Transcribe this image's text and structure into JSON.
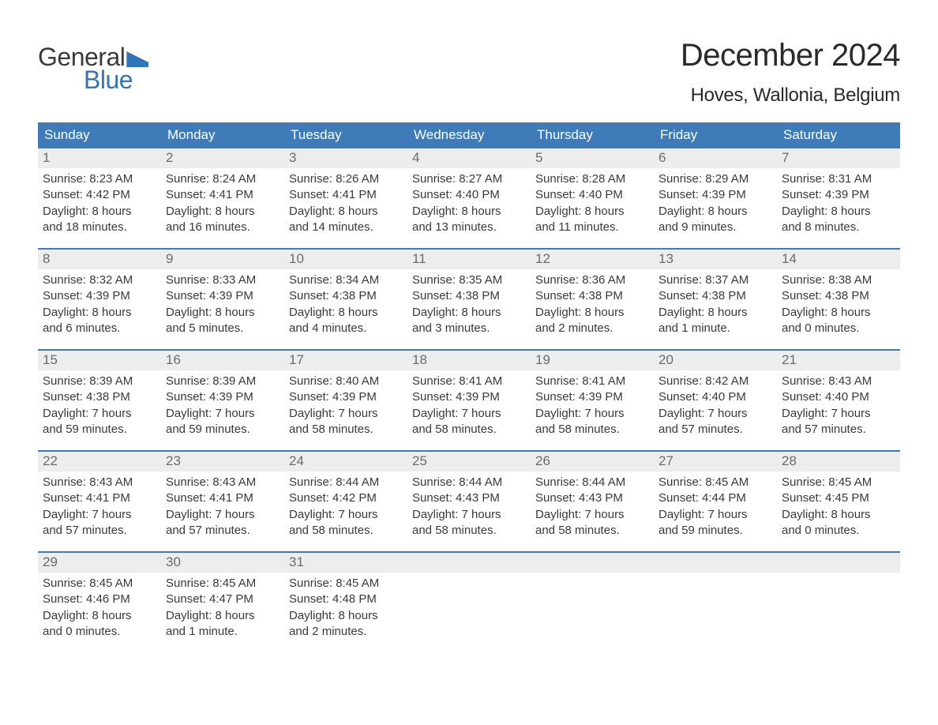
{
  "colors": {
    "header_bg": "#3d7cb8",
    "header_text": "#ffffff",
    "daynum_bg": "#ededed",
    "daynum_text": "#6b6b6b",
    "body_text": "#3a3a3a",
    "week_border": "#3d7cb8",
    "logo_blue": "#2f76b8",
    "page_bg": "#ffffff"
  },
  "logo": {
    "word1": "General",
    "word2": "Blue"
  },
  "title": "December 2024",
  "location": "Hoves, Wallonia, Belgium",
  "weekdays": [
    "Sunday",
    "Monday",
    "Tuesday",
    "Wednesday",
    "Thursday",
    "Friday",
    "Saturday"
  ],
  "weeks": [
    [
      {
        "n": "1",
        "sr": "Sunrise: 8:23 AM",
        "ss": "Sunset: 4:42 PM",
        "dl1": "Daylight: 8 hours",
        "dl2": "and 18 minutes."
      },
      {
        "n": "2",
        "sr": "Sunrise: 8:24 AM",
        "ss": "Sunset: 4:41 PM",
        "dl1": "Daylight: 8 hours",
        "dl2": "and 16 minutes."
      },
      {
        "n": "3",
        "sr": "Sunrise: 8:26 AM",
        "ss": "Sunset: 4:41 PM",
        "dl1": "Daylight: 8 hours",
        "dl2": "and 14 minutes."
      },
      {
        "n": "4",
        "sr": "Sunrise: 8:27 AM",
        "ss": "Sunset: 4:40 PM",
        "dl1": "Daylight: 8 hours",
        "dl2": "and 13 minutes."
      },
      {
        "n": "5",
        "sr": "Sunrise: 8:28 AM",
        "ss": "Sunset: 4:40 PM",
        "dl1": "Daylight: 8 hours",
        "dl2": "and 11 minutes."
      },
      {
        "n": "6",
        "sr": "Sunrise: 8:29 AM",
        "ss": "Sunset: 4:39 PM",
        "dl1": "Daylight: 8 hours",
        "dl2": "and 9 minutes."
      },
      {
        "n": "7",
        "sr": "Sunrise: 8:31 AM",
        "ss": "Sunset: 4:39 PM",
        "dl1": "Daylight: 8 hours",
        "dl2": "and 8 minutes."
      }
    ],
    [
      {
        "n": "8",
        "sr": "Sunrise: 8:32 AM",
        "ss": "Sunset: 4:39 PM",
        "dl1": "Daylight: 8 hours",
        "dl2": "and 6 minutes."
      },
      {
        "n": "9",
        "sr": "Sunrise: 8:33 AM",
        "ss": "Sunset: 4:39 PM",
        "dl1": "Daylight: 8 hours",
        "dl2": "and 5 minutes."
      },
      {
        "n": "10",
        "sr": "Sunrise: 8:34 AM",
        "ss": "Sunset: 4:38 PM",
        "dl1": "Daylight: 8 hours",
        "dl2": "and 4 minutes."
      },
      {
        "n": "11",
        "sr": "Sunrise: 8:35 AM",
        "ss": "Sunset: 4:38 PM",
        "dl1": "Daylight: 8 hours",
        "dl2": "and 3 minutes."
      },
      {
        "n": "12",
        "sr": "Sunrise: 8:36 AM",
        "ss": "Sunset: 4:38 PM",
        "dl1": "Daylight: 8 hours",
        "dl2": "and 2 minutes."
      },
      {
        "n": "13",
        "sr": "Sunrise: 8:37 AM",
        "ss": "Sunset: 4:38 PM",
        "dl1": "Daylight: 8 hours",
        "dl2": "and 1 minute."
      },
      {
        "n": "14",
        "sr": "Sunrise: 8:38 AM",
        "ss": "Sunset: 4:38 PM",
        "dl1": "Daylight: 8 hours",
        "dl2": "and 0 minutes."
      }
    ],
    [
      {
        "n": "15",
        "sr": "Sunrise: 8:39 AM",
        "ss": "Sunset: 4:38 PM",
        "dl1": "Daylight: 7 hours",
        "dl2": "and 59 minutes."
      },
      {
        "n": "16",
        "sr": "Sunrise: 8:39 AM",
        "ss": "Sunset: 4:39 PM",
        "dl1": "Daylight: 7 hours",
        "dl2": "and 59 minutes."
      },
      {
        "n": "17",
        "sr": "Sunrise: 8:40 AM",
        "ss": "Sunset: 4:39 PM",
        "dl1": "Daylight: 7 hours",
        "dl2": "and 58 minutes."
      },
      {
        "n": "18",
        "sr": "Sunrise: 8:41 AM",
        "ss": "Sunset: 4:39 PM",
        "dl1": "Daylight: 7 hours",
        "dl2": "and 58 minutes."
      },
      {
        "n": "19",
        "sr": "Sunrise: 8:41 AM",
        "ss": "Sunset: 4:39 PM",
        "dl1": "Daylight: 7 hours",
        "dl2": "and 58 minutes."
      },
      {
        "n": "20",
        "sr": "Sunrise: 8:42 AM",
        "ss": "Sunset: 4:40 PM",
        "dl1": "Daylight: 7 hours",
        "dl2": "and 57 minutes."
      },
      {
        "n": "21",
        "sr": "Sunrise: 8:43 AM",
        "ss": "Sunset: 4:40 PM",
        "dl1": "Daylight: 7 hours",
        "dl2": "and 57 minutes."
      }
    ],
    [
      {
        "n": "22",
        "sr": "Sunrise: 8:43 AM",
        "ss": "Sunset: 4:41 PM",
        "dl1": "Daylight: 7 hours",
        "dl2": "and 57 minutes."
      },
      {
        "n": "23",
        "sr": "Sunrise: 8:43 AM",
        "ss": "Sunset: 4:41 PM",
        "dl1": "Daylight: 7 hours",
        "dl2": "and 57 minutes."
      },
      {
        "n": "24",
        "sr": "Sunrise: 8:44 AM",
        "ss": "Sunset: 4:42 PM",
        "dl1": "Daylight: 7 hours",
        "dl2": "and 58 minutes."
      },
      {
        "n": "25",
        "sr": "Sunrise: 8:44 AM",
        "ss": "Sunset: 4:43 PM",
        "dl1": "Daylight: 7 hours",
        "dl2": "and 58 minutes."
      },
      {
        "n": "26",
        "sr": "Sunrise: 8:44 AM",
        "ss": "Sunset: 4:43 PM",
        "dl1": "Daylight: 7 hours",
        "dl2": "and 58 minutes."
      },
      {
        "n": "27",
        "sr": "Sunrise: 8:45 AM",
        "ss": "Sunset: 4:44 PM",
        "dl1": "Daylight: 7 hours",
        "dl2": "and 59 minutes."
      },
      {
        "n": "28",
        "sr": "Sunrise: 8:45 AM",
        "ss": "Sunset: 4:45 PM",
        "dl1": "Daylight: 8 hours",
        "dl2": "and 0 minutes."
      }
    ],
    [
      {
        "n": "29",
        "sr": "Sunrise: 8:45 AM",
        "ss": "Sunset: 4:46 PM",
        "dl1": "Daylight: 8 hours",
        "dl2": "and 0 minutes."
      },
      {
        "n": "30",
        "sr": "Sunrise: 8:45 AM",
        "ss": "Sunset: 4:47 PM",
        "dl1": "Daylight: 8 hours",
        "dl2": "and 1 minute."
      },
      {
        "n": "31",
        "sr": "Sunrise: 8:45 AM",
        "ss": "Sunset: 4:48 PM",
        "dl1": "Daylight: 8 hours",
        "dl2": "and 2 minutes."
      },
      null,
      null,
      null,
      null
    ]
  ]
}
